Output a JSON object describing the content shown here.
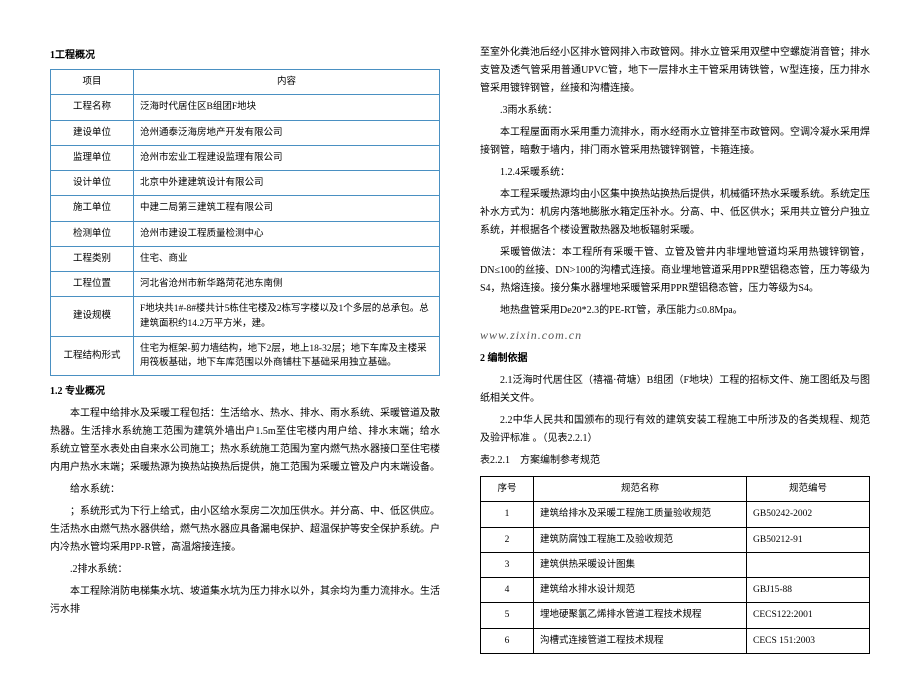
{
  "left": {
    "h1": "1工程概况",
    "infoTable": {
      "header": [
        "项目",
        "内容"
      ],
      "rows": [
        [
          "工程名称",
          "泛海时代居住区B组团F地块"
        ],
        [
          "建设单位",
          "沧州通泰泛海房地产开发有限公司"
        ],
        [
          "监理单位",
          "沧州市宏业工程建设监理有限公司"
        ],
        [
          "设计单位",
          "北京中外建建筑设计有限公司"
        ],
        [
          "施工单位",
          "中建二局第三建筑工程有限公司"
        ],
        [
          "检测单位",
          "沧州市建设工程质量检测中心"
        ],
        [
          "工程类别",
          "住宅、商业"
        ],
        [
          "工程位置",
          "河北省沧州市新华路菏花池东南侧"
        ],
        [
          "建设规模",
          "F地块共1#-8#楼共计5栋住宅楼及2栋写字楼以及1个多层的总承包。总建筑面积约14.2万平方米，建。"
        ],
        [
          "工程结构形式",
          "住宅为框架-剪力墙结构，地下2层，地上18-32层；地下车库及主楼采用筏板基础，地下车库范围以外商铺柱下基础采用独立基础。"
        ]
      ]
    },
    "h2": "1.2 专业概况",
    "p1": "本工程中给排水及采暖工程包括：生活给水、热水、排水、雨水系统、采暖管道及散热器。生活排水系统施工范围为建筑外墙出户1.5m至住宅楼内用户给、排水末端；给水系统立管至水表处由自来水公司施工；热水系统施工范围为室内燃气热水器接口至住宅楼内用户热水末端；采暖热源为换热站换热后提供，施工范围为采暖立管及户内末端设备。",
    "p2": "给水系统：",
    "p3": "；系统形式为下行上给式，由小区给水泵房二次加压供水。并分高、中、低区供应。生活热水由燃气热水器供给，燃气热水器应具备漏电保护、超温保护等安全保护系统。户内冷热水管均采用PP-R管，高温熔接连接。",
    "p4": ".2排水系统：",
    "p5": "本工程除消防电梯集水坑、坡道集水坑为压力排水以外，其余均为重力流排水。生活污水排"
  },
  "right": {
    "p1": "至室外化粪池后经小区排水管网排入市政管网。排水立管采用双壁中空螺旋消音管；排水支管及透气管采用普通UPVC管，地下一层排水主干管采用铸铁管，W型连接，压力排水管采用镀锌钢管，丝接和沟槽连接。",
    "p2": ".3雨水系统：",
    "p3": "本工程屋面雨水采用重力流排水，雨水经雨水立管排至市政管网。空调冷凝水采用焊接钢管，暗敷于墙内，排门雨水管采用热镀锌钢管，卡箍连接。",
    "p4": "1.2.4采暖系统：",
    "p5": "本工程采暖热源均由小区集中换热站换热后提供，机械循环热水采暖系统。系统定压补水方式为：机房内落地膨胀水箱定压补水。分高、中、低区供水；采用共立管分户独立系统，并根据各个楼设置散热器及地板辐射采暖。",
    "p6": "采暖管做法：本工程所有采暖干管、立管及管井内非埋地管道均采用热镀锌钢管，DN≤100的丝接、DN>100的沟槽式连接。商业埋地管道采用PPR塑铝稳态管，压力等级为S4，热熔连接。接分集水器埋地采暖管采用PPR塑铝稳态管，压力等级为S4。",
    "p7": "地热盘管采用De20*2.3的PE-RT管，承压能力≤0.8Mpa。",
    "h2": "2 编制依据",
    "p8": "2.1泛海时代居住区（禧福·荷塘）B组团（F地块）工程的招标文件、施工图纸及与图纸相关文件。",
    "p9": "2.2中华人民共和国颁布的现行有效的建筑安装工程施工中所涉及的各类规程、规范及验评标准 。（见表2.2.1）",
    "tblCap": "表2.2.1　方案编制参考规范",
    "specTable": {
      "header": [
        "序号",
        "规范名称",
        "规范编号"
      ],
      "rows": [
        [
          "1",
          "建筑给排水及采暖工程施工质量验收规范",
          "GB50242-2002"
        ],
        [
          "2",
          "建筑防腐蚀工程施工及验收规范",
          "GB50212-91"
        ],
        [
          "3",
          "建筑供热采暖设计图集",
          ""
        ],
        [
          "4",
          "建筑给水排水设计规范",
          "GBJ15-88"
        ],
        [
          "5",
          "埋地硬聚氯乙烯排水管道工程技术规程",
          "CECS122:2001"
        ],
        [
          "6",
          "沟槽式连接管道工程技术规程",
          "CECS 151:2003"
        ]
      ]
    },
    "watermark": "www.zixin.com.cn"
  }
}
